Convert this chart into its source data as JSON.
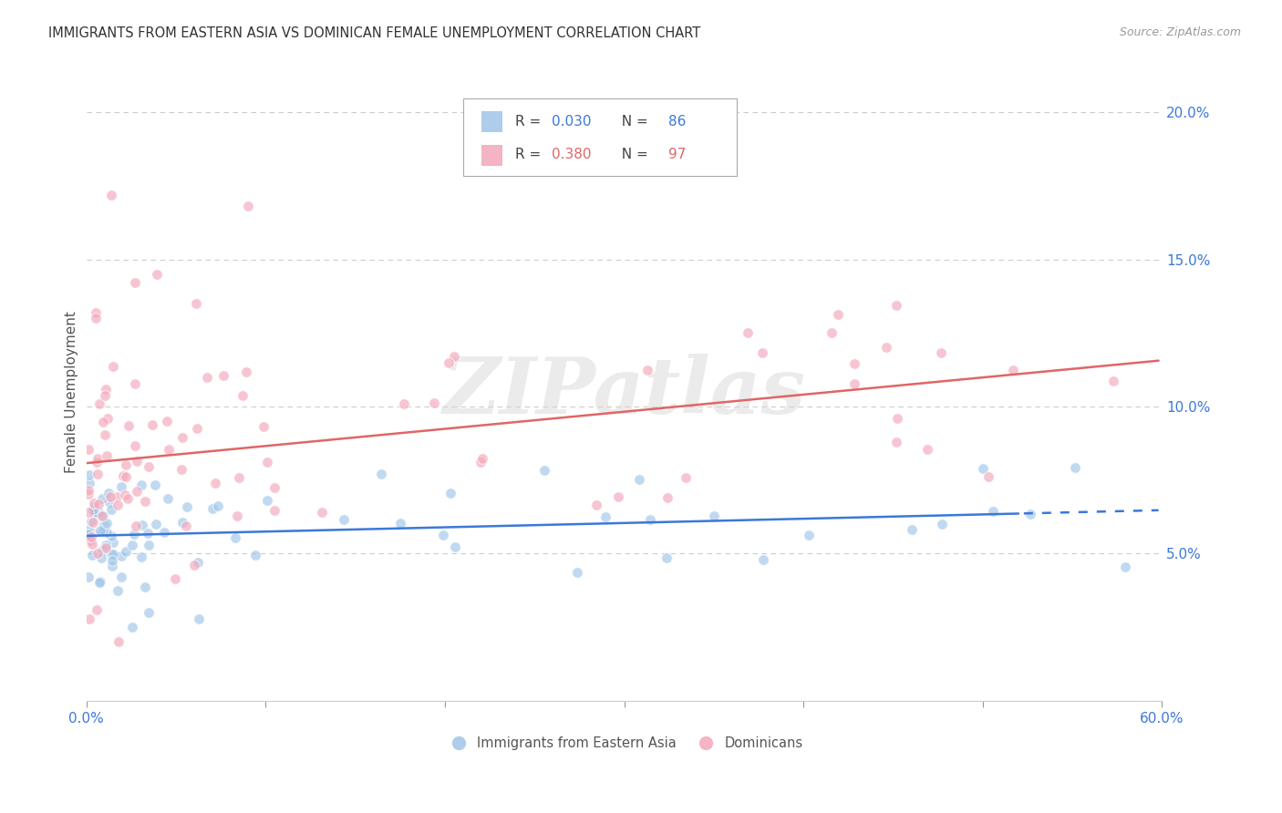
{
  "title": "IMMIGRANTS FROM EASTERN ASIA VS DOMINICAN FEMALE UNEMPLOYMENT CORRELATION CHART",
  "source": "Source: ZipAtlas.com",
  "ylabel": "Female Unemployment",
  "legend1_label": "Immigrants from Eastern Asia",
  "legend2_label": "Dominicans",
  "R1": "0.030",
  "N1": "86",
  "R2": "0.380",
  "N2": "97",
  "blue_color": "#9fc5e8",
  "pink_color": "#f4a7b9",
  "blue_line_color": "#3c78d8",
  "pink_line_color": "#e06666",
  "right_yticks": [
    0.05,
    0.1,
    0.15,
    0.2
  ],
  "xlim": [
    0.0,
    0.6
  ],
  "ylim": [
    0.0,
    0.21
  ],
  "watermark": "ZIPatlas",
  "grid_color": "#cccccc",
  "bg_color": "#ffffff",
  "n_blue": 86,
  "n_pink": 97,
  "blue_seed": 77,
  "pink_seed": 42,
  "blue_intercept": 0.058,
  "blue_slope": 0.005,
  "blue_noise": 0.01,
  "pink_intercept": 0.075,
  "pink_slope": 0.065,
  "pink_noise": 0.022
}
